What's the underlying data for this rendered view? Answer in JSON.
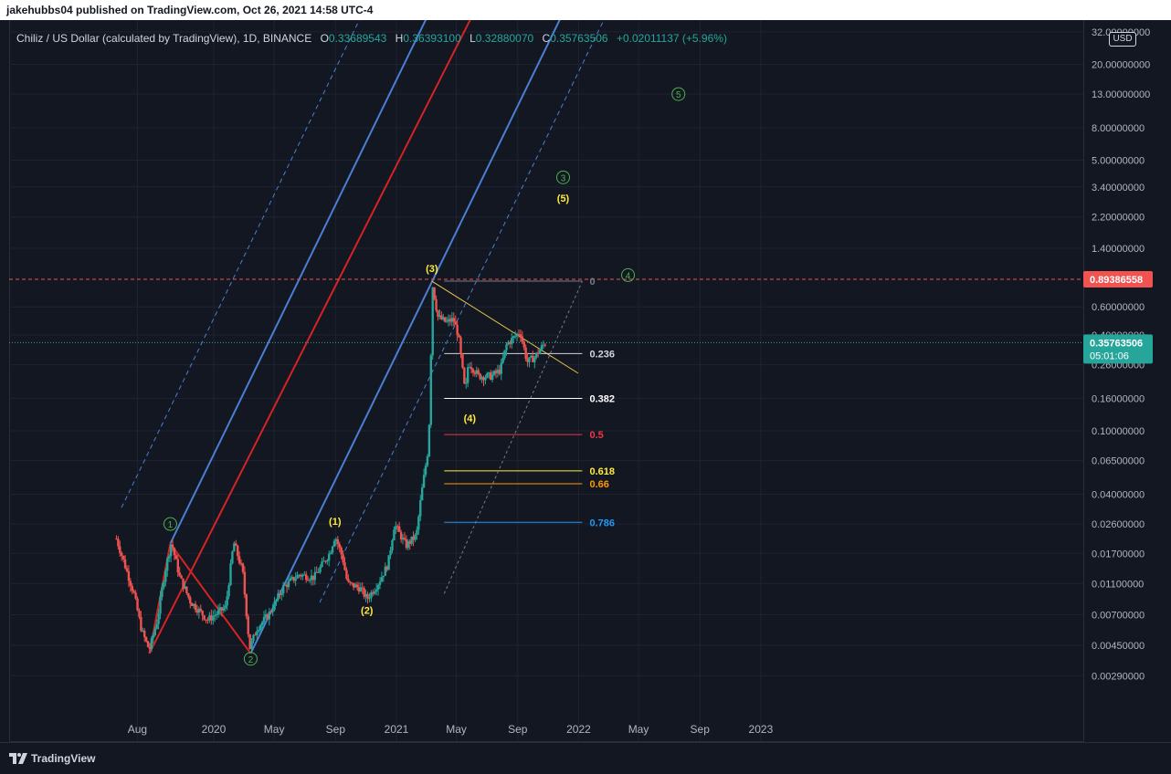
{
  "header": {
    "text": "jakehubbs04 published on TradingView.com, Oct 26, 2021 14:58 UTC-4"
  },
  "legend": {
    "symbol": "Chiliz / US Dollar (calculated by TradingView), 1D, BINANCE",
    "o_label": "O",
    "o_value": "0.33689543",
    "h_label": "H",
    "h_value": "0.36393100",
    "l_label": "L",
    "l_value": "0.32880070",
    "c_label": "C",
    "c_value": "0.35763506",
    "change": "+0.02011137 (+5.96%)"
  },
  "price_axis": {
    "currency": "USD",
    "ticks": [
      "32.00000000",
      "20.00000000",
      "13.00000000",
      "8.00000000",
      "5.00000000",
      "3.40000000",
      "2.20000000",
      "1.40000000",
      "0.60000000",
      "0.40000000",
      "0.26000000",
      "0.16000000",
      "0.10000000",
      "0.06500000",
      "0.04000000",
      "0.02600000",
      "0.01700000",
      "0.01100000",
      "0.00700000",
      "0.00450000",
      "0.00290000"
    ],
    "target_label": "0.89386558",
    "current_label": "0.35763506",
    "countdown": "05:01:06"
  },
  "time_axis": {
    "ticks": [
      "Aug",
      "2020",
      "May",
      "Sep",
      "2021",
      "May",
      "Sep",
      "2022",
      "May",
      "Sep",
      "2023"
    ]
  },
  "footer": {
    "brand": "TradingView"
  },
  "colors": {
    "background": "#131722",
    "channel_blue": "#4a7fd4",
    "median_red": "#d62323",
    "triangle_yellow": "#e8c44a",
    "up_candle": "#26a69a",
    "down_candle": "#ef5350",
    "wave_green": "#4caf50",
    "wave_yellow": "#ffeb3b",
    "target_red": "#f05350",
    "current_teal": "#26a69a"
  },
  "chart_data": {
    "type": "candlestick",
    "symbol": "CHZUSD",
    "timeframe": "1D",
    "scale": "log",
    "x_range": [
      "2019-06-01",
      "2023-04-01"
    ],
    "y_range": [
      0.002,
      40
    ],
    "price_path": [
      [
        "2019-06-20",
        0.021
      ],
      [
        "2019-07-05",
        0.015
      ],
      [
        "2019-07-25",
        0.0095
      ],
      [
        "2019-08-10",
        0.0055
      ],
      [
        "2019-08-25",
        0.0042
      ],
      [
        "2019-09-10",
        0.0065
      ],
      [
        "2019-09-25",
        0.013
      ],
      [
        "2019-10-08",
        0.02
      ],
      [
        "2019-10-25",
        0.012
      ],
      [
        "2019-11-15",
        0.0085
      ],
      [
        "2019-12-20",
        0.0065
      ],
      [
        "2020-01-25",
        0.0078
      ],
      [
        "2020-02-10",
        0.02
      ],
      [
        "2020-02-28",
        0.013
      ],
      [
        "2020-03-13",
        0.0043
      ],
      [
        "2020-03-28",
        0.0058
      ],
      [
        "2020-04-20",
        0.007
      ],
      [
        "2020-05-20",
        0.0105
      ],
      [
        "2020-06-20",
        0.0125
      ],
      [
        "2020-07-20",
        0.012
      ],
      [
        "2020-08-20",
        0.017
      ],
      [
        "2020-08-31",
        0.022
      ],
      [
        "2020-09-15",
        0.016
      ],
      [
        "2020-09-25",
        0.011
      ],
      [
        "2020-10-20",
        0.0103
      ],
      [
        "2020-11-03",
        0.0088
      ],
      [
        "2020-11-25",
        0.011
      ],
      [
        "2020-12-15",
        0.0145
      ],
      [
        "2020-12-28",
        0.026
      ],
      [
        "2021-01-20",
        0.019
      ],
      [
        "2021-02-10",
        0.022
      ],
      [
        "2021-02-20",
        0.04
      ],
      [
        "2021-03-05",
        0.075
      ],
      [
        "2021-03-10",
        0.16
      ],
      [
        "2021-03-13",
        0.87
      ],
      [
        "2021-03-25",
        0.52
      ],
      [
        "2021-04-10",
        0.48
      ],
      [
        "2021-04-25",
        0.5
      ],
      [
        "2021-05-05",
        0.4
      ],
      [
        "2021-05-19",
        0.17
      ],
      [
        "2021-05-25",
        0.27
      ],
      [
        "2021-06-15",
        0.22
      ],
      [
        "2021-07-10",
        0.22
      ],
      [
        "2021-07-28",
        0.24
      ],
      [
        "2021-08-10",
        0.35
      ],
      [
        "2021-09-06",
        0.42
      ],
      [
        "2021-09-20",
        0.27
      ],
      [
        "2021-10-05",
        0.29
      ],
      [
        "2021-10-26",
        0.358
      ]
    ],
    "candle_count": 245,
    "current_price": 0.35763506,
    "target_level": 0.89386558,
    "channel": {
      "anchors": [
        [
          "2019-10-06",
          0.0196
        ],
        [
          "2020-03-15",
          0.004
        ],
        [
          "2021-03-13",
          0.86
        ]
      ],
      "median_from": [
        "2019-08-25",
        0.004
      ]
    },
    "fib_retracement": {
      "high": 0.87,
      "low": 0.0103,
      "from_date": "2021-04-25",
      "to_date": "2022-01-01",
      "levels": [
        {
          "label": "0",
          "ratio": 0,
          "color": "#787b86"
        },
        {
          "label": "0.236",
          "ratio": 0.236,
          "color": "#d1d4dc"
        },
        {
          "label": "0.382",
          "ratio": 0.382,
          "color": "#ffffff"
        },
        {
          "label": "0.5",
          "ratio": 0.5,
          "color": "#f23645"
        },
        {
          "label": "0.618",
          "ratio": 0.618,
          "color": "#ffeb3b"
        },
        {
          "label": "0.66",
          "ratio": 0.66,
          "color": "#ff9800"
        },
        {
          "label": "0.786",
          "ratio": 0.786,
          "color": "#2196f3"
        }
      ]
    },
    "triangle_line": [
      [
        "2021-03-13",
        0.87
      ],
      [
        "2021-12-31",
        0.23
      ]
    ],
    "wave_labels": [
      {
        "text": "1",
        "style": "circle-green",
        "date": "2019-10-06",
        "price": 0.026
      },
      {
        "text": "2",
        "style": "circle-green",
        "date": "2020-03-15",
        "price": 0.0037
      },
      {
        "text": "3",
        "style": "circle-green",
        "date": "2021-12-01",
        "price": 3.9
      },
      {
        "text": "4",
        "style": "circle-green",
        "date": "2022-04-10",
        "price": 0.95
      },
      {
        "text": "5",
        "style": "circle-green",
        "date": "2022-07-20",
        "price": 13.0
      },
      {
        "text": "(1)",
        "style": "paren-yellow",
        "date": "2020-08-31",
        "price": 0.027
      },
      {
        "text": "(2)",
        "style": "paren-yellow",
        "date": "2020-11-03",
        "price": 0.0075
      },
      {
        "text": "(3)",
        "style": "paren-yellow",
        "date": "2021-03-13",
        "price": 1.05
      },
      {
        "text": "(4)",
        "style": "paren-yellow",
        "date": "2021-05-28",
        "price": 0.12
      },
      {
        "text": "(5)",
        "style": "paren-yellow",
        "date": "2021-12-01",
        "price": 2.9
      }
    ]
  }
}
